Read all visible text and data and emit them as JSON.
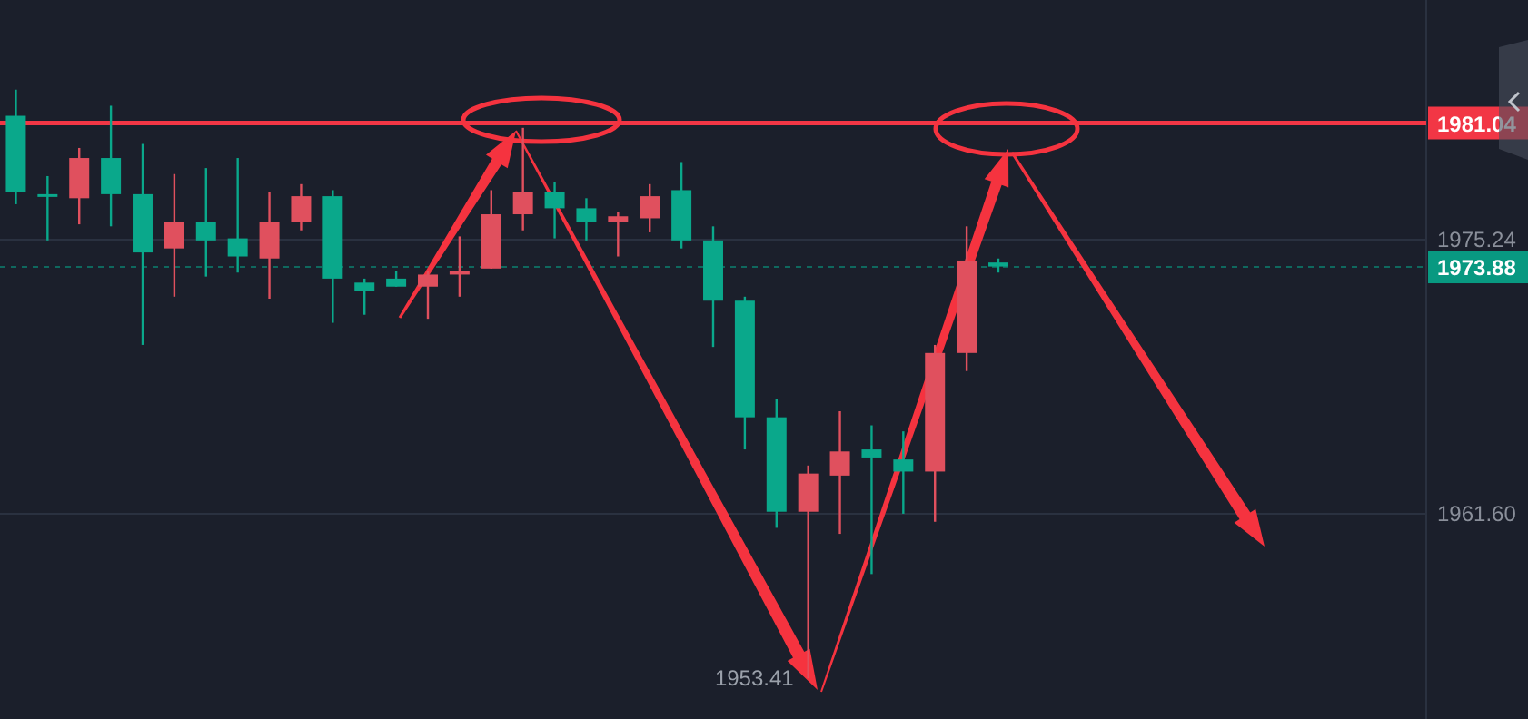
{
  "chart_data": {
    "type": "candlestick",
    "categories": [
      null,
      null,
      null,
      null,
      null,
      null,
      null,
      null,
      null,
      null,
      null,
      null,
      null,
      null,
      null,
      null,
      null,
      null,
      null,
      null,
      null,
      null,
      null,
      null,
      null,
      null,
      null,
      null,
      null,
      null,
      null,
      null,
      null,
      null,
      null,
      null,
      null,
      null,
      null,
      null,
      null,
      null,
      null,
      null,
      null
    ],
    "ohlc": [
      [
        1981.4,
        1982.7,
        1977.0,
        1977.6
      ],
      [
        1977.5,
        1978.4,
        1975.2,
        1977.4
      ],
      [
        1977.3,
        1979.8,
        1976.0,
        1979.3
      ],
      [
        1979.3,
        1981.9,
        1975.9,
        1977.5
      ],
      [
        1977.5,
        1980.0,
        1970.0,
        1974.6
      ],
      [
        1974.8,
        1978.5,
        1972.4,
        1976.1
      ],
      [
        1976.1,
        1978.8,
        1973.4,
        1975.2
      ],
      [
        1975.3,
        1979.3,
        1973.6,
        1974.4
      ],
      [
        1974.3,
        1977.6,
        1972.3,
        1976.1
      ],
      [
        1976.1,
        1978.0,
        1975.7,
        1977.4
      ],
      [
        1977.4,
        1977.7,
        1971.1,
        1973.3
      ],
      [
        1973.1,
        1973.3,
        1971.5,
        1972.7
      ],
      [
        1973.3,
        1973.7,
        1972.9,
        1972.9
      ],
      [
        1972.9,
        1973.7,
        1971.3,
        1973.5
      ],
      [
        1973.5,
        1975.4,
        1972.4,
        1973.7
      ],
      [
        1973.8,
        1977.7,
        1973.8,
        1976.5
      ],
      [
        1976.5,
        1980.8,
        1975.7,
        1977.6
      ],
      [
        1977.6,
        1978.1,
        1975.3,
        1976.8
      ],
      [
        1976.8,
        1977.3,
        1975.2,
        1976.1
      ],
      [
        1976.1,
        1976.6,
        1974.4,
        1976.4
      ],
      [
        1976.3,
        1978.0,
        1975.6,
        1977.4
      ],
      [
        1977.7,
        1979.1,
        1974.8,
        1975.2
      ],
      [
        1975.2,
        1975.9,
        1969.9,
        1972.2
      ],
      [
        1972.2,
        1972.4,
        1964.8,
        1966.4
      ],
      [
        1966.4,
        1967.3,
        1960.9,
        1961.7
      ],
      [
        1961.7,
        1964.0,
        1953.41,
        1963.6
      ],
      [
        1963.5,
        1966.7,
        1960.6,
        1964.7
      ],
      [
        1964.8,
        1966.0,
        1958.6,
        1964.4
      ],
      [
        1964.3,
        1965.7,
        1961.6,
        1963.7
      ],
      [
        1963.7,
        1970.0,
        1961.2,
        1969.6
      ],
      [
        1969.6,
        1975.9,
        1968.7,
        1974.2
      ],
      [
        1974.1,
        1974.3,
        1973.6,
        1973.9
      ],
      null,
      null,
      null,
      null,
      null,
      null,
      null,
      null,
      null,
      null,
      null,
      null,
      null
    ],
    "colors": [
      "#0aa88b",
      "#0aa88b",
      "#e0505e",
      "#0aa88b",
      "#0aa88b",
      "#e0505e",
      "#0aa88b",
      "#0aa88b",
      "#e0505e",
      "#e0505e",
      "#0aa88b",
      "#0aa88b",
      "#0aa88b",
      "#e0505e",
      "#e0505e",
      "#e0505e",
      "#e0505e",
      "#0aa88b",
      "#0aa88b",
      "#e0505e",
      "#e0505e",
      "#0aa88b",
      "#0aa88b",
      "#0aa88b",
      "#0aa88b",
      "#e0505e",
      "#e0505e",
      "#0aa88b",
      "#0aa88b",
      "#e0505e",
      "#e0505e",
      "#0aa88b",
      null,
      null,
      null,
      null,
      null,
      null,
      null,
      null,
      null,
      null,
      null,
      null,
      null
    ],
    "ylim": [
      1951.39,
      1987.16
    ],
    "yticks": [
      1975.24,
      {
        "value": 1961.6,
        "label": "1961.60"
      }
    ],
    "grid": "y",
    "ref_lines": [
      {
        "axis": "y",
        "value": 1981.04,
        "label": "1981.04",
        "color": "#f23645",
        "line_style": "solid"
      },
      {
        "axis": "y",
        "value": 1973.88,
        "label": "1973.88",
        "color": "#089981",
        "line_style": "dashed"
      }
    ],
    "annotations": [
      "1953.41"
    ]
  }
}
